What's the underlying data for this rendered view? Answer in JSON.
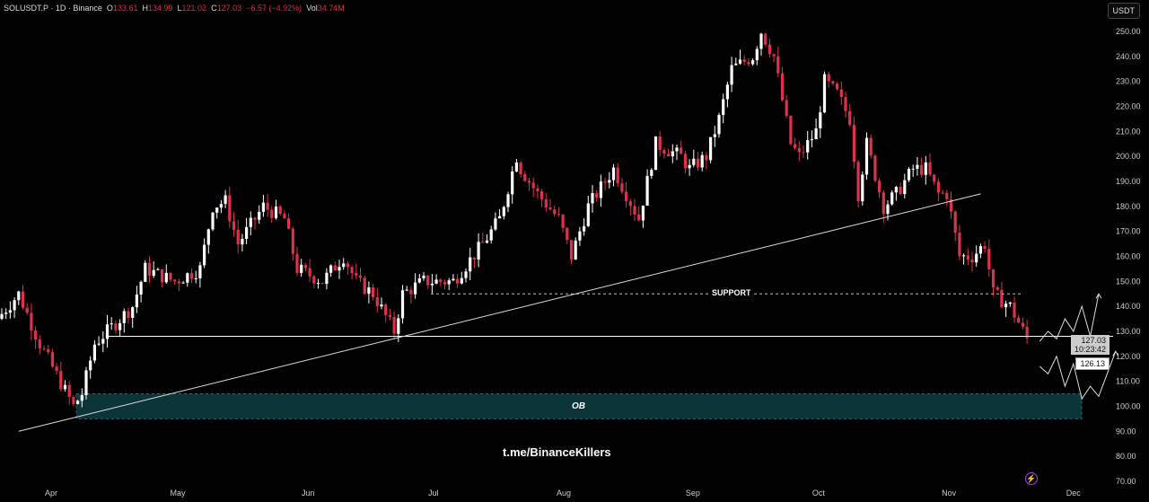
{
  "header": {
    "symbol": "SOLUSDT.P · 1D · Binance",
    "o_label": "O",
    "o": "133.61",
    "h_label": "H",
    "h": "134.99",
    "l_label": "L",
    "l": "121.02",
    "c_label": "C",
    "c": "127.03",
    "change": "−6.57 (−4.92%)",
    "vol_label": "Vol",
    "vol": "34.74M"
  },
  "currency_button": "USDT",
  "price_tags": {
    "last": "127.03",
    "countdown": "10:23:42",
    "crosshair": "126.13"
  },
  "annotations": {
    "support": "SUPPORT",
    "ob": "OB",
    "watermark": "t.me/BinanceKillers"
  },
  "colors": {
    "up": "#ffffff",
    "down": "#e0314b",
    "ob_fill": "#0b3538"
  },
  "chart_data": {
    "type": "candlestick",
    "title": "SOLUSDT.P 1D Binance",
    "ylim": [
      70,
      255
    ],
    "y_ticks": [
      "250.00",
      "240.00",
      "230.00",
      "220.00",
      "210.00",
      "200.00",
      "190.00",
      "180.00",
      "170.00",
      "160.00",
      "150.00",
      "140.00",
      "130.00",
      "120.00",
      "110.00",
      "100.00",
      "90.00",
      "80.00",
      "70.00"
    ],
    "x_ticks": [
      "Apr",
      "May",
      "Jun",
      "Jul",
      "Aug",
      "Sep",
      "Oct",
      "Nov",
      "Dec"
    ],
    "x_tick_days": [
      11.7,
      41.7,
      72.6,
      102.3,
      133.2,
      163.8,
      193.6,
      224.5,
      254
    ],
    "close_path": [
      [
        0,
        135
      ],
      [
        5,
        145
      ],
      [
        10,
        125
      ],
      [
        18,
        100
      ],
      [
        20,
        105
      ],
      [
        23,
        125
      ],
      [
        32,
        140
      ],
      [
        35,
        155
      ],
      [
        42,
        150
      ],
      [
        48,
        155
      ],
      [
        51,
        180
      ],
      [
        54,
        182
      ],
      [
        57,
        165
      ],
      [
        63,
        180
      ],
      [
        68,
        175
      ],
      [
        71,
        155
      ],
      [
        77,
        150
      ],
      [
        82,
        160
      ],
      [
        85,
        150
      ],
      [
        89,
        145
      ],
      [
        94,
        130
      ],
      [
        96,
        145
      ],
      [
        101,
        150
      ],
      [
        108,
        150
      ],
      [
        115,
        165
      ],
      [
        119,
        175
      ],
      [
        123,
        200
      ],
      [
        124,
        195
      ],
      [
        128,
        185
      ],
      [
        133,
        175
      ],
      [
        136,
        160
      ],
      [
        140,
        180
      ],
      [
        146,
        195
      ],
      [
        149,
        185
      ],
      [
        152,
        175
      ],
      [
        156,
        205
      ],
      [
        162,
        200
      ],
      [
        164,
        195
      ],
      [
        168,
        200
      ],
      [
        171,
        215
      ],
      [
        174,
        235
      ],
      [
        179,
        240
      ],
      [
        181,
        250
      ],
      [
        184,
        240
      ],
      [
        188,
        205
      ],
      [
        190,
        200
      ],
      [
        194,
        210
      ],
      [
        196,
        230
      ],
      [
        199,
        225
      ],
      [
        202,
        215
      ],
      [
        204,
        185
      ],
      [
        206,
        205
      ],
      [
        210,
        180
      ],
      [
        213,
        185
      ],
      [
        217,
        195
      ],
      [
        220,
        195
      ],
      [
        223,
        185
      ],
      [
        225,
        185
      ],
      [
        228,
        160
      ],
      [
        231,
        160
      ],
      [
        234,
        165
      ],
      [
        236,
        145
      ],
      [
        240,
        140
      ],
      [
        244,
        127
      ]
    ],
    "levels": {
      "support": 145,
      "horizontal": 128,
      "ob_range": [
        95,
        105
      ],
      "trendline": [
        [
          4,
          90
        ],
        [
          232,
          185
        ]
      ]
    },
    "projections": [
      [
        [
          246,
          126
        ],
        [
          248,
          130
        ],
        [
          250,
          127
        ],
        [
          252,
          135
        ],
        [
          254,
          130
        ],
        [
          256,
          140
        ],
        [
          258,
          128
        ],
        [
          260,
          145
        ]
      ],
      [
        [
          246,
          116
        ],
        [
          248,
          113
        ],
        [
          250,
          120
        ],
        [
          252,
          108
        ],
        [
          254,
          117
        ],
        [
          256,
          103
        ],
        [
          258,
          108
        ],
        [
          260,
          104
        ],
        [
          262,
          113
        ],
        [
          264,
          122
        ]
      ]
    ]
  }
}
